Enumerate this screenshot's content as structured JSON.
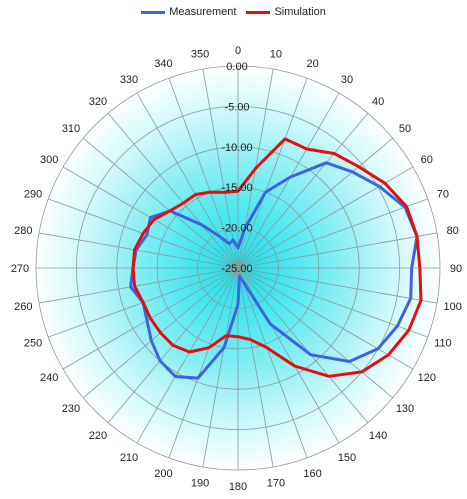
{
  "chart_data": {
    "type": "radar",
    "title": "",
    "angle_unit": "degrees",
    "angular_ticks": [
      0,
      10,
      20,
      30,
      40,
      50,
      60,
      70,
      80,
      90,
      100,
      110,
      120,
      130,
      140,
      150,
      160,
      170,
      180,
      190,
      200,
      210,
      220,
      230,
      240,
      250,
      260,
      270,
      280,
      290,
      300,
      310,
      320,
      330,
      340,
      350
    ],
    "angular_tick_labels": [
      "0",
      "10",
      "20",
      "30",
      "40",
      "50",
      "60",
      "70",
      "80",
      "90",
      "100",
      "110",
      "120",
      "130",
      "140",
      "150",
      "160",
      "170",
      "180",
      "190",
      "200",
      "210",
      "220",
      "230",
      "240",
      "250",
      "260",
      "270",
      "280",
      "290",
      "300",
      "310",
      "320",
      "330",
      "340",
      "350"
    ],
    "radial_range": [
      -25,
      0
    ],
    "radial_ticks": [
      -25,
      -20,
      -15,
      -10,
      -5,
      0
    ],
    "radial_tick_labels": [
      "-25.00",
      "-20.00",
      "-15.00",
      "-10.00",
      "-5.00",
      "0.00"
    ],
    "grid": true,
    "legend_position": "top",
    "background": "radial cyan gradient",
    "series": [
      {
        "name": "Measurement",
        "color": "#3f63e0",
        "angles": [
          0,
          10,
          20,
          30,
          40,
          50,
          60,
          70,
          80,
          90,
          100,
          110,
          120,
          130,
          140,
          150,
          160,
          170,
          180,
          190,
          200,
          210,
          220,
          230,
          240,
          250,
          260,
          270,
          280,
          290,
          300,
          310,
          320,
          330,
          340,
          350
        ],
        "values": [
          -22.5,
          -20.0,
          -15.0,
          -12.0,
          -8.0,
          -6.5,
          -4.8,
          -3.0,
          -2.5,
          -3.5,
          -3.3,
          -4.0,
          -5.0,
          -7.0,
          -11.0,
          -17.0,
          -23.3,
          -24.0,
          -20.5,
          -15.0,
          -10.5,
          -9.5,
          -10.0,
          -11.0,
          -12.0,
          -12.5,
          -11.5,
          -12.0,
          -12.2,
          -13.0,
          -12.5,
          -14.0,
          -18.0,
          -20.5,
          -21.8,
          -21.5
        ]
      },
      {
        "name": "Simulation",
        "color": "#e01010",
        "angles": [
          0,
          10,
          20,
          30,
          40,
          50,
          60,
          70,
          80,
          90,
          100,
          110,
          120,
          130,
          140,
          150,
          160,
          170,
          180,
          190,
          200,
          210,
          220,
          230,
          240,
          250,
          260,
          270,
          280,
          290,
          300,
          310,
          320,
          330,
          340,
          350
        ],
        "values": [
          -15.5,
          -12.5,
          -8.0,
          -8.0,
          -6.5,
          -5.5,
          -4.0,
          -2.8,
          -2.5,
          -2.5,
          -2.0,
          -2.5,
          -3.5,
          -5.0,
          -7.5,
          -11.0,
          -14.5,
          -16.0,
          -16.5,
          -16.5,
          -14.5,
          -13.0,
          -12.5,
          -12.5,
          -12.5,
          -12.5,
          -12.0,
          -12.0,
          -12.0,
          -12.5,
          -13.0,
          -14.0,
          -14.5,
          -14.5,
          -15.0,
          -15.5
        ]
      }
    ]
  }
}
